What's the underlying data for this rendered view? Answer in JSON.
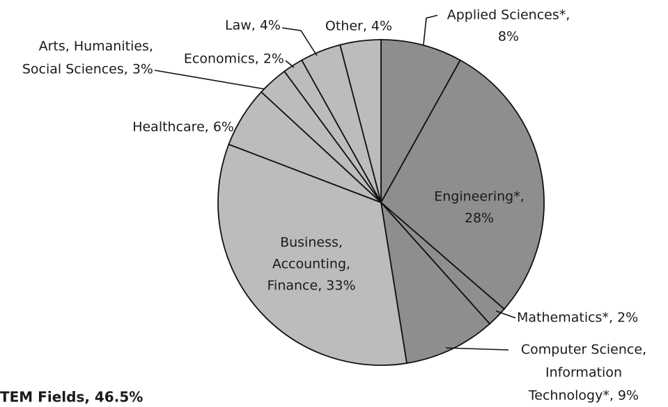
{
  "chart_data": {
    "type": "pie",
    "values": [
      8,
      28,
      2,
      9,
      33,
      6,
      3,
      2,
      4,
      4
    ],
    "value_labels": [
      [
        "Applied Sciences*,",
        "8%"
      ],
      [
        "Engineering*,",
        "28%"
      ],
      [
        "Mathematics*, 2%"
      ],
      [
        "Computer Science,",
        "Information",
        "Technology*, 9%"
      ],
      [
        "Business,",
        "Accounting,",
        "Finance, 33%"
      ],
      [
        "Healthcare, 6%"
      ],
      [
        "Arts, Humanities,",
        "Social Sciences, 3%"
      ],
      [
        "Economics, 2%"
      ],
      [
        "Law, 4%"
      ],
      [
        "Other, 4%"
      ]
    ],
    "colors": [
      "#8e8e8e",
      "#8e8e8e",
      "#8e8e8e",
      "#8e8e8e",
      "#bcbcbc",
      "#bcbcbc",
      "#bcbcbc",
      "#bcbcbc",
      "#bcbcbc",
      "#bcbcbc"
    ],
    "annotation": "TEM Fields, 46.5%"
  }
}
